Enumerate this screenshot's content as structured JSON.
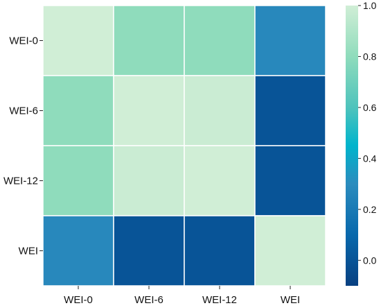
{
  "chart_data": {
    "type": "heatmap",
    "title": "",
    "xlabel": "",
    "ylabel": "",
    "rows": [
      "WEI-0",
      "WEI-6",
      "WEI-12",
      "WEI"
    ],
    "columns": [
      "WEI-0",
      "WEI-6",
      "WEI-12",
      "WEI"
    ],
    "values": [
      [
        1.0,
        0.8,
        0.8,
        0.28
      ],
      [
        0.8,
        1.0,
        0.98,
        0.0
      ],
      [
        0.8,
        0.98,
        1.0,
        0.0
      ],
      [
        0.28,
        0.0,
        0.0,
        1.0
      ]
    ],
    "colorbar": {
      "range": [
        -0.1,
        1.0
      ],
      "ticks": [
        "0.0",
        "0.2",
        "0.4",
        "0.6",
        "0.8",
        "1.0"
      ],
      "tick_values": [
        0.0,
        0.2,
        0.4,
        0.6,
        0.8,
        1.0
      ],
      "colormap_stops": [
        {
          "value": -0.1,
          "color": "#084081"
        },
        {
          "value": 0.1,
          "color": "#0868ac"
        },
        {
          "value": 0.3,
          "color": "#2b8cbe"
        },
        {
          "value": 0.45,
          "color": "#00b4cc"
        },
        {
          "value": 0.6,
          "color": "#4ec3bc"
        },
        {
          "value": 0.8,
          "color": "#8fdcbc"
        },
        {
          "value": 1.0,
          "color": "#d0eed6"
        }
      ]
    },
    "grid_lines": true,
    "grid_line_color": "#ffffff",
    "legend": "colorbar-right"
  }
}
